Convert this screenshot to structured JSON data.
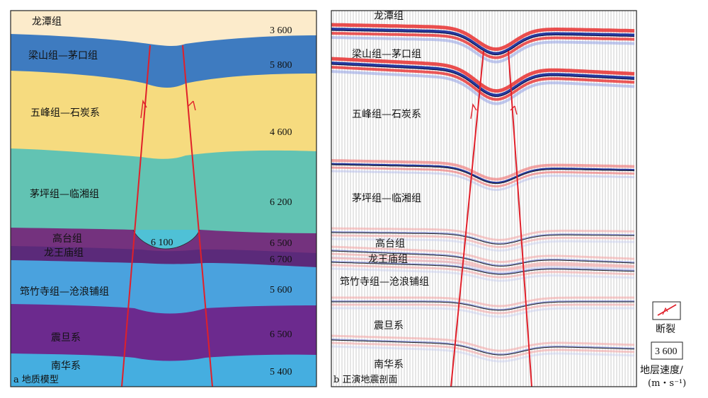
{
  "panel_a": {
    "caption": "a 地质模型",
    "layers": [
      {
        "name": "龙潭组",
        "velocity": "3 600",
        "color": "#FCEBCB"
      },
      {
        "name": "梁山组—茅口组",
        "velocity": "5 800",
        "color": "#3E7BC0"
      },
      {
        "name": "五峰组—石炭系",
        "velocity": "4 600",
        "color": "#F6DB7F"
      },
      {
        "name": "茅坪组—临湘组",
        "velocity": "6 200",
        "color": "#62C3B3"
      },
      {
        "name": "高台组",
        "velocity": "6 500",
        "color": "#74327E"
      },
      {
        "name": "龙王庙组",
        "velocity": "6 700",
        "color": "#5B2A7A"
      },
      {
        "name": "筇竹寺组—沧浪铺组",
        "velocity": "5 600",
        "color": "#4AA2DE"
      },
      {
        "name": "震旦系",
        "velocity": "6 500",
        "color": "#6C2A8E"
      },
      {
        "name": "南华系",
        "velocity": "5 400",
        "color": "#45AEE0"
      }
    ],
    "lens_velocity": "6 100",
    "lens_color": "#4FC1D6"
  },
  "panel_b": {
    "caption": "b 正演地震剖面",
    "layers": [
      "龙潭组",
      "梁山组—茅口组",
      "五峰组—石炭系",
      "茅坪组—临湘组",
      "高台组",
      "龙王庙组",
      "筇竹寺组—沧浪铺组",
      "震旦系",
      "南华系"
    ]
  },
  "legend": {
    "fault_label": "断裂",
    "fault_color": "#E0202A",
    "velocity_sample": "3 600",
    "velocity_label_line1": "地层速度/",
    "velocity_label_line2": "(m・s⁻¹)"
  }
}
